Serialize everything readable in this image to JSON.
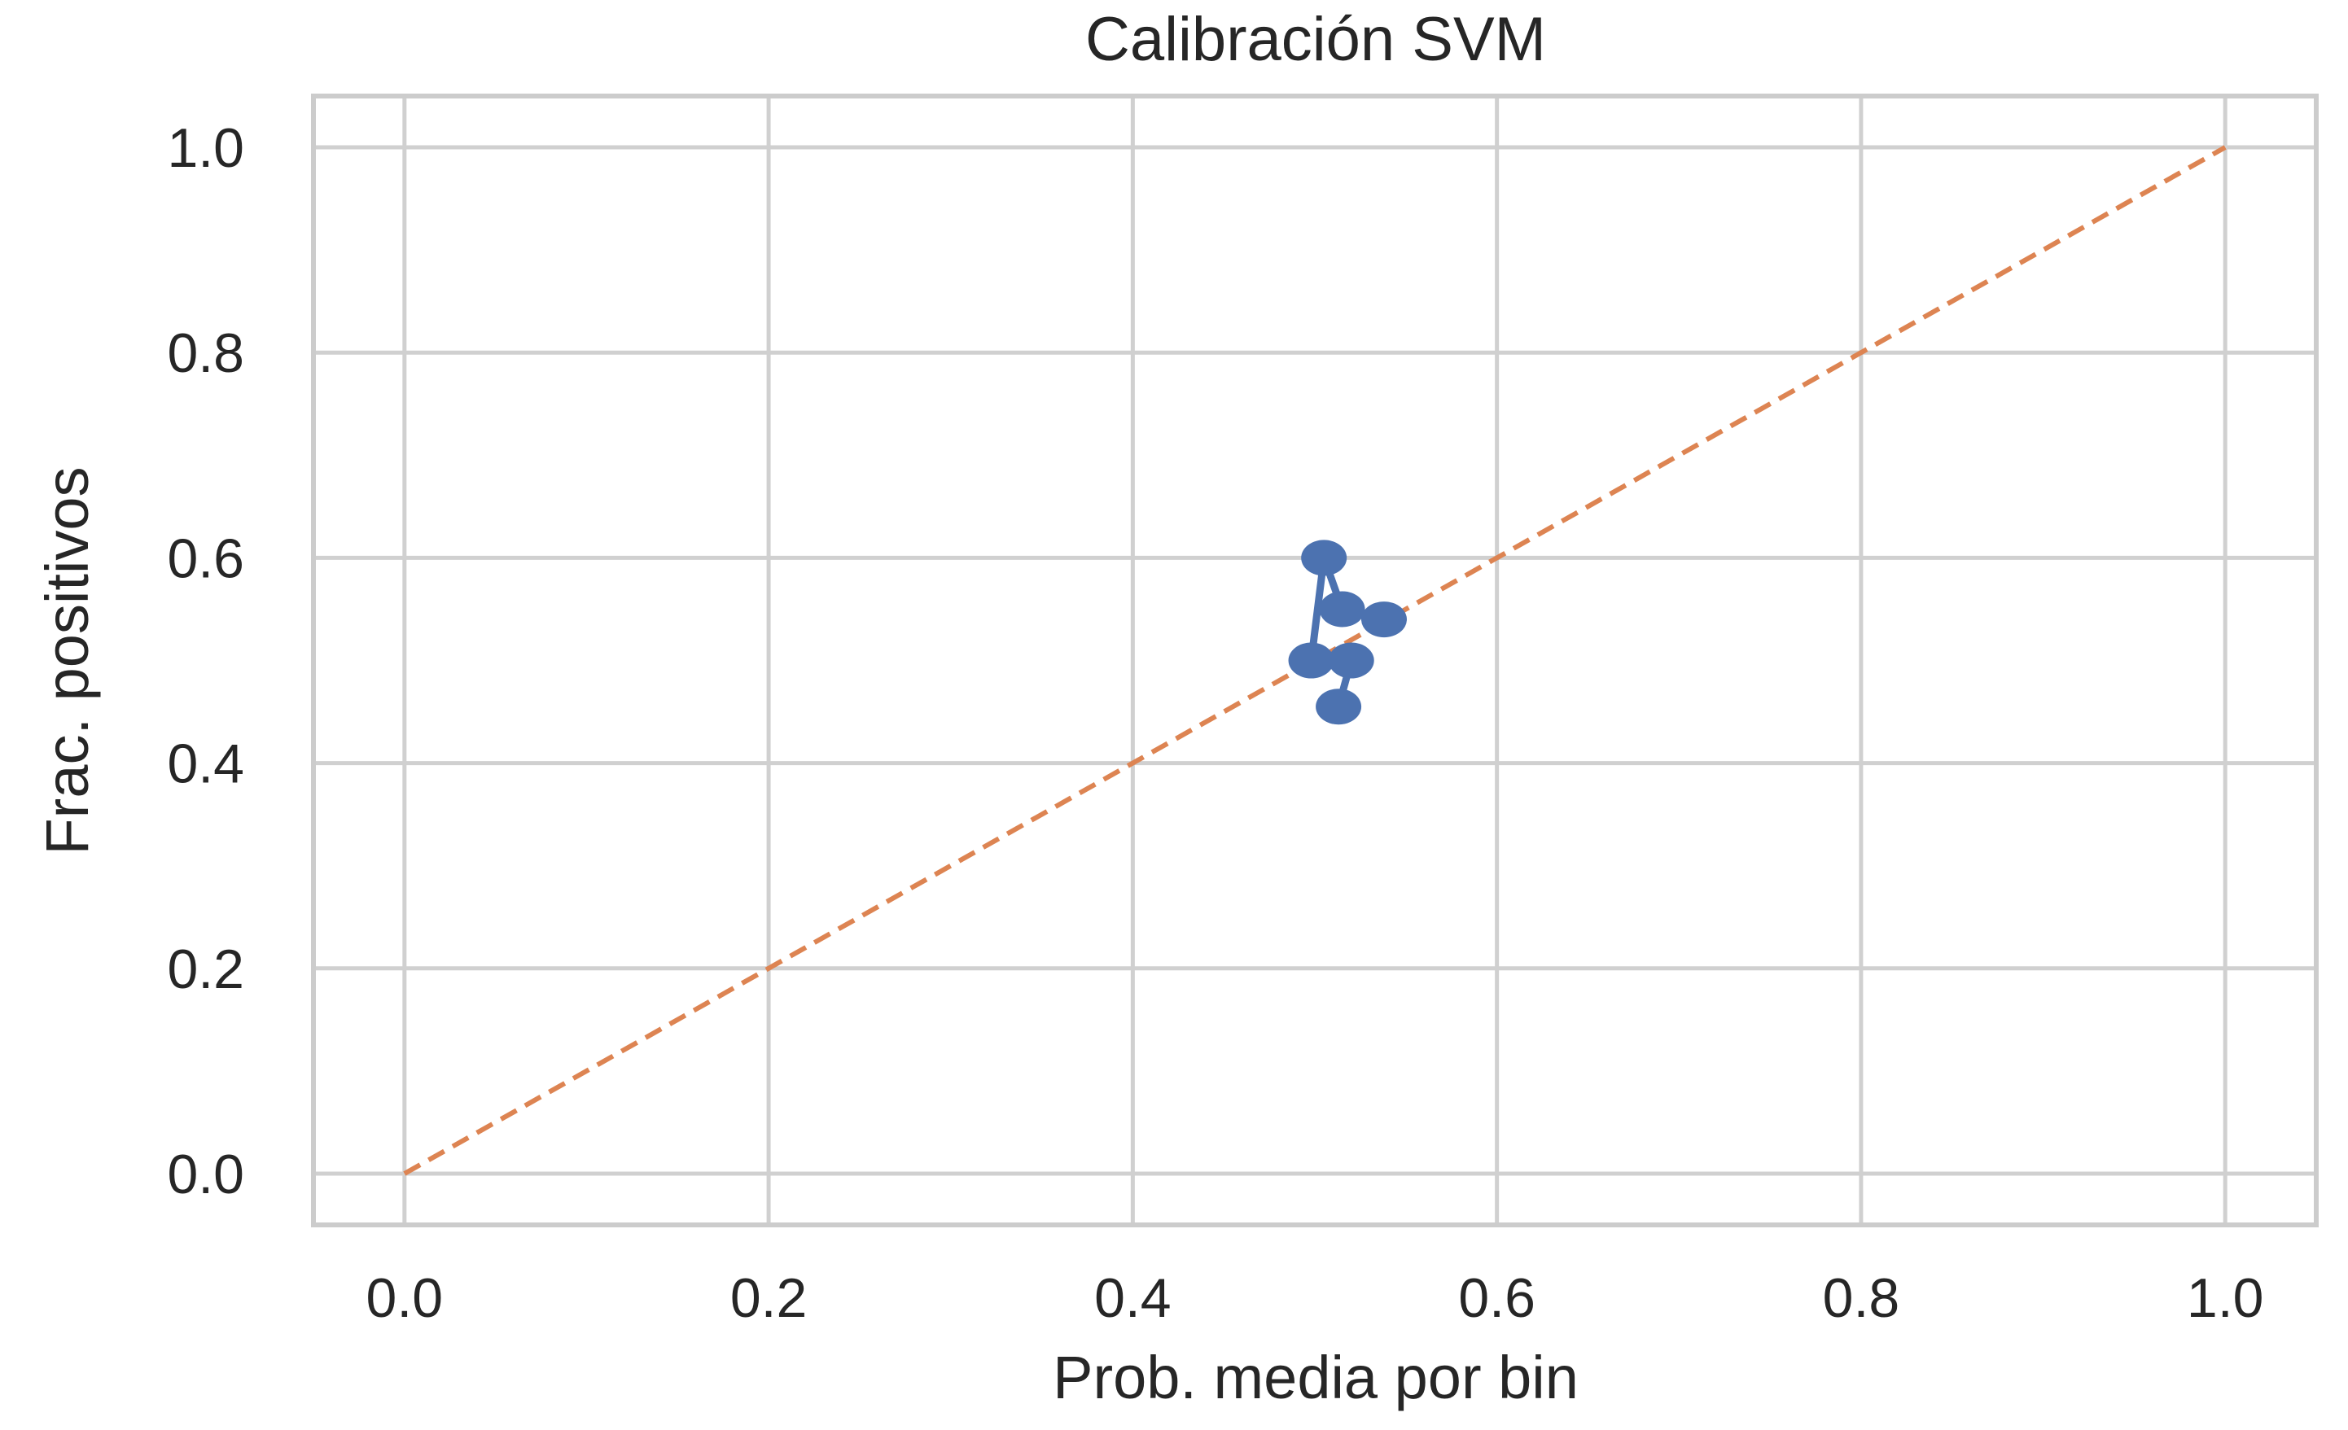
{
  "chart_data": {
    "type": "line",
    "title": "Calibración SVM",
    "xlabel": "Prob. media por bin",
    "ylabel": "Frac. positivos",
    "xlim": [
      -0.05,
      1.05
    ],
    "ylim": [
      -0.05,
      1.05
    ],
    "xticks": [
      0.0,
      0.2,
      0.4,
      0.6,
      0.8,
      1.0
    ],
    "yticks": [
      0.0,
      0.2,
      0.4,
      0.6,
      0.8,
      1.0
    ],
    "xtick_labels": [
      "0.0",
      "0.2",
      "0.4",
      "0.6",
      "0.8",
      "1.0"
    ],
    "ytick_labels": [
      "0.0",
      "0.2",
      "0.4",
      "0.6",
      "0.8",
      "1.0"
    ],
    "grid": true,
    "series": [
      {
        "color": "#4c72b0",
        "marker": "o",
        "x": [
          0.513,
          0.52,
          0.498,
          0.505,
          0.515,
          0.538
        ],
        "y": [
          0.455,
          0.5,
          0.5,
          0.6,
          0.55,
          0.54
        ]
      },
      {
        "color": "#dd8452",
        "linestyle": "dashed",
        "x": [
          0.0,
          1.0
        ],
        "y": [
          0.0,
          1.0
        ]
      }
    ],
    "colors": {
      "grid": "#d0d0d0",
      "frame": "#cccccc",
      "text": "#262626",
      "series_main": "#4c72b0",
      "reference": "#dd8452"
    }
  }
}
